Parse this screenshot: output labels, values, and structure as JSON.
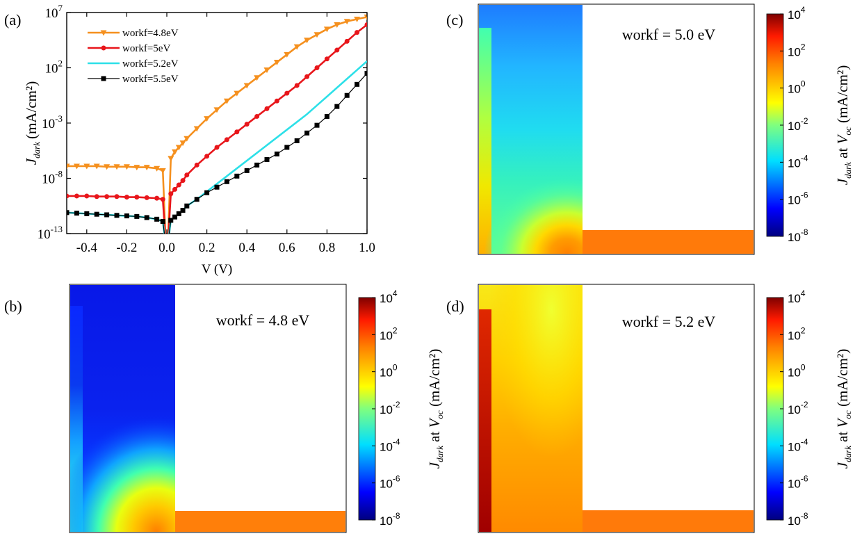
{
  "panel_labels": {
    "a": "(a)",
    "b": "(b)",
    "c": "(c)",
    "d": "(d)"
  },
  "chart_data": [
    {
      "type": "line",
      "xlabel": "V (V)",
      "ylabel_main": "J",
      "ylabel_sub": "dark",
      "ylabel_unit": "(mA/cm²)",
      "xlim": [
        -0.5,
        1.0
      ],
      "ylim_log10": [
        -13,
        7
      ],
      "yscale": "log",
      "x_ticks": [
        "-0.4",
        "-0.2",
        "0.0",
        "0.2",
        "0.4",
        "0.6",
        "0.8",
        "1.0"
      ],
      "x_tick_values": [
        -0.4,
        -0.2,
        0.0,
        0.2,
        0.4,
        0.6,
        0.8,
        1.0
      ],
      "y_tick_exponents": [
        7,
        2,
        -3,
        -8,
        -13
      ],
      "legend_position": "top-left",
      "series": [
        {
          "name": "workf=4.8eV",
          "color": "#f5901e",
          "marker": "triangle-down",
          "x": [
            -0.5,
            -0.45,
            -0.4,
            -0.35,
            -0.3,
            -0.25,
            -0.2,
            -0.15,
            -0.1,
            -0.05,
            -0.02,
            -0.005,
            0.005,
            0.02,
            0.04,
            0.06,
            0.08,
            0.1,
            0.15,
            0.2,
            0.25,
            0.3,
            0.35,
            0.4,
            0.45,
            0.5,
            0.55,
            0.6,
            0.65,
            0.7,
            0.75,
            0.8,
            0.85,
            0.9,
            0.95,
            1.0
          ],
          "log10_y": [
            -6.9,
            -6.9,
            -6.9,
            -6.9,
            -6.95,
            -6.95,
            -6.95,
            -7,
            -7,
            -7.1,
            -7.3,
            -14,
            -14,
            -6.2,
            -5.6,
            -5.2,
            -4.8,
            -4.4,
            -3.5,
            -2.6,
            -1.8,
            -1.0,
            -0.3,
            0.4,
            1.1,
            1.8,
            2.5,
            3.2,
            3.9,
            4.5,
            5.0,
            5.5,
            5.9,
            6.2,
            6.4,
            6.6
          ]
        },
        {
          "name": "workf=5eV",
          "color": "#e8161b",
          "marker": "circle",
          "x": [
            -0.5,
            -0.45,
            -0.4,
            -0.35,
            -0.3,
            -0.25,
            -0.2,
            -0.15,
            -0.1,
            -0.05,
            -0.02,
            -0.005,
            0.005,
            0.02,
            0.04,
            0.06,
            0.08,
            0.1,
            0.15,
            0.2,
            0.25,
            0.3,
            0.35,
            0.4,
            0.45,
            0.5,
            0.55,
            0.6,
            0.65,
            0.7,
            0.75,
            0.8,
            0.85,
            0.9,
            0.95,
            1.0
          ],
          "log10_y": [
            -9.6,
            -9.6,
            -9.6,
            -9.65,
            -9.65,
            -9.65,
            -9.7,
            -9.7,
            -9.75,
            -9.8,
            -9.9,
            -14,
            -14,
            -9.4,
            -9.0,
            -8.6,
            -8.2,
            -7.7,
            -6.8,
            -6.0,
            -5.2,
            -4.5,
            -3.8,
            -3.1,
            -2.4,
            -1.7,
            -1.0,
            -0.3,
            0.4,
            1.2,
            2.0,
            2.8,
            3.6,
            4.4,
            5.2,
            5.9
          ]
        },
        {
          "name": "workf=5.2eV",
          "color": "#2de0e8",
          "marker": "none",
          "x": [
            -0.5,
            -0.45,
            -0.4,
            -0.35,
            -0.3,
            -0.25,
            -0.2,
            -0.15,
            -0.1,
            -0.05,
            -0.02,
            -0.005,
            0.005,
            0.02,
            0.04,
            0.06,
            0.08,
            0.1,
            0.15,
            0.2,
            0.25,
            0.3,
            0.35,
            0.4,
            0.45,
            0.5,
            0.55,
            0.6,
            0.65,
            0.7,
            0.75,
            0.8,
            0.85,
            0.9,
            0.95,
            1.0
          ],
          "log10_y": [
            -11.1,
            -11.15,
            -11.2,
            -11.25,
            -11.3,
            -11.35,
            -11.4,
            -11.45,
            -11.55,
            -11.7,
            -11.9,
            -14,
            -14,
            -11.8,
            -11.5,
            -11.2,
            -10.9,
            -10.5,
            -9.9,
            -9.2,
            -8.5,
            -7.8,
            -7.1,
            -6.4,
            -5.7,
            -5.0,
            -4.3,
            -3.6,
            -2.9,
            -2.2,
            -1.4,
            -0.6,
            0.2,
            1.0,
            1.8,
            2.6
          ]
        },
        {
          "name": "workf=5.5eV",
          "color": "#000000",
          "marker": "square",
          "x": [
            -0.5,
            -0.45,
            -0.4,
            -0.35,
            -0.3,
            -0.25,
            -0.2,
            -0.15,
            -0.1,
            -0.05,
            -0.02,
            -0.005,
            0.005,
            0.02,
            0.04,
            0.06,
            0.08,
            0.1,
            0.15,
            0.2,
            0.25,
            0.3,
            0.35,
            0.4,
            0.45,
            0.5,
            0.55,
            0.6,
            0.65,
            0.7,
            0.75,
            0.8,
            0.85,
            0.9,
            0.95,
            1.0
          ],
          "log10_y": [
            -11.1,
            -11.15,
            -11.2,
            -11.25,
            -11.3,
            -11.35,
            -11.4,
            -11.45,
            -11.55,
            -11.7,
            -11.9,
            -14,
            -14,
            -11.8,
            -11.5,
            -11.2,
            -10.9,
            -10.5,
            -9.9,
            -9.3,
            -8.8,
            -8.3,
            -7.8,
            -7.3,
            -6.8,
            -6.3,
            -5.8,
            -5.2,
            -4.6,
            -3.9,
            -3.2,
            -2.4,
            -1.5,
            -0.5,
            0.5,
            1.5
          ]
        }
      ]
    },
    {
      "type": "heatmap",
      "panel": "(b)",
      "annotation": "workf = 4.8 eV",
      "colorbar_label_main": "J",
      "colorbar_label_sub": "dark",
      "colorbar_label_mid": "at",
      "colorbar_label_v": "V",
      "colorbar_label_vsub": "oc",
      "colorbar_label_unit": "(mA/cm²)",
      "colorbar_exponents": [
        4,
        2,
        0,
        -2,
        -4,
        -6,
        -8
      ],
      "colorbar_range_log10": [
        -8,
        4
      ]
    },
    {
      "type": "heatmap",
      "panel": "(c)",
      "annotation": "workf = 5.0 eV",
      "colorbar_label_main": "J",
      "colorbar_label_sub": "dark",
      "colorbar_label_mid": "at",
      "colorbar_label_v": "V",
      "colorbar_label_vsub": "oc",
      "colorbar_label_unit": "(mA/cm²)",
      "colorbar_exponents": [
        4,
        2,
        0,
        -2,
        -4,
        -6,
        -8
      ],
      "colorbar_range_log10": [
        -8,
        4
      ]
    },
    {
      "type": "heatmap",
      "panel": "(d)",
      "annotation": "workf = 5.2 eV",
      "colorbar_label_main": "J",
      "colorbar_label_sub": "dark",
      "colorbar_label_mid": "at",
      "colorbar_label_v": "V",
      "colorbar_label_vsub": "oc",
      "colorbar_label_unit": "(mA/cm²)",
      "colorbar_exponents": [
        4,
        2,
        0,
        -2,
        -4,
        -6,
        -8
      ],
      "colorbar_range_log10": [
        -8,
        4
      ]
    }
  ]
}
